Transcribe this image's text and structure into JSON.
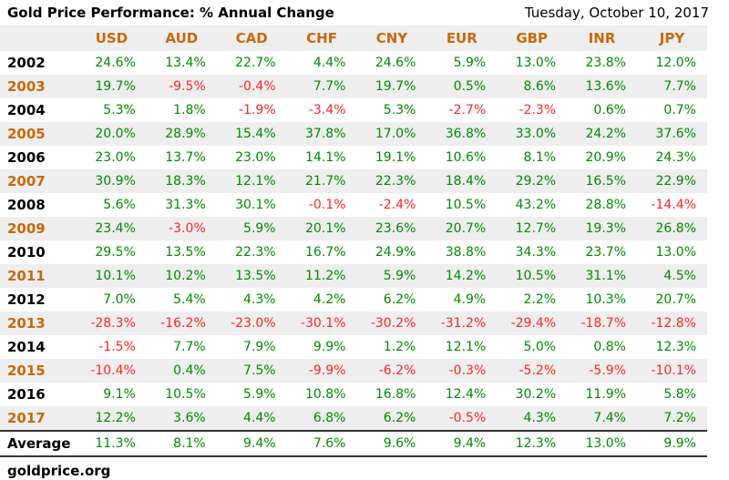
{
  "header": {
    "title": "Gold Price Performance: % Annual Change",
    "date": "Tuesday, October 10, 2017"
  },
  "footer": {
    "source": "goldprice.org"
  },
  "colors": {
    "accent_orange": "#c8690a",
    "positive_green": "#008a00",
    "negative_red": "#ff2525",
    "row_band_gray": "#eeeeee",
    "rule_dark": "#333333"
  },
  "chart_data": {
    "type": "table",
    "title": "Gold Price Performance: % Annual Change",
    "columns": [
      "USD",
      "AUD",
      "CAD",
      "CHF",
      "CNY",
      "EUR",
      "GBP",
      "INR",
      "JPY"
    ],
    "rows": [
      {
        "label": "2002",
        "values": [
          "24.6%",
          "13.4%",
          "22.7%",
          "4.4%",
          "24.6%",
          "5.9%",
          "13.0%",
          "23.8%",
          "12.0%"
        ]
      },
      {
        "label": "2003",
        "values": [
          "19.7%",
          "-9.5%",
          "-0.4%",
          "7.7%",
          "19.7%",
          "0.5%",
          "8.6%",
          "13.6%",
          "7.7%"
        ]
      },
      {
        "label": "2004",
        "values": [
          "5.3%",
          "1.8%",
          "-1.9%",
          "-3.4%",
          "5.3%",
          "-2.7%",
          "-2.3%",
          "0.6%",
          "0.7%"
        ]
      },
      {
        "label": "2005",
        "values": [
          "20.0%",
          "28.9%",
          "15.4%",
          "37.8%",
          "17.0%",
          "36.8%",
          "33.0%",
          "24.2%",
          "37.6%"
        ]
      },
      {
        "label": "2006",
        "values": [
          "23.0%",
          "13.7%",
          "23.0%",
          "14.1%",
          "19.1%",
          "10.6%",
          "8.1%",
          "20.9%",
          "24.3%"
        ]
      },
      {
        "label": "2007",
        "values": [
          "30.9%",
          "18.3%",
          "12.1%",
          "21.7%",
          "22.3%",
          "18.4%",
          "29.2%",
          "16.5%",
          "22.9%"
        ]
      },
      {
        "label": "2008",
        "values": [
          "5.6%",
          "31.3%",
          "30.1%",
          "-0.1%",
          "-2.4%",
          "10.5%",
          "43.2%",
          "28.8%",
          "-14.4%"
        ]
      },
      {
        "label": "2009",
        "values": [
          "23.4%",
          "-3.0%",
          "5.9%",
          "20.1%",
          "23.6%",
          "20.7%",
          "12.7%",
          "19.3%",
          "26.8%"
        ]
      },
      {
        "label": "2010",
        "values": [
          "29.5%",
          "13.5%",
          "22.3%",
          "16.7%",
          "24.9%",
          "38.8%",
          "34.3%",
          "23.7%",
          "13.0%"
        ]
      },
      {
        "label": "2011",
        "values": [
          "10.1%",
          "10.2%",
          "13.5%",
          "11.2%",
          "5.9%",
          "14.2%",
          "10.5%",
          "31.1%",
          "4.5%"
        ]
      },
      {
        "label": "2012",
        "values": [
          "7.0%",
          "5.4%",
          "4.3%",
          "4.2%",
          "6.2%",
          "4.9%",
          "2.2%",
          "10.3%",
          "20.7%"
        ]
      },
      {
        "label": "2013",
        "values": [
          "-28.3%",
          "-16.2%",
          "-23.0%",
          "-30.1%",
          "-30.2%",
          "-31.2%",
          "-29.4%",
          "-18.7%",
          "-12.8%"
        ]
      },
      {
        "label": "2014",
        "values": [
          "-1.5%",
          "7.7%",
          "7.9%",
          "9.9%",
          "1.2%",
          "12.1%",
          "5.0%",
          "0.8%",
          "12.3%"
        ]
      },
      {
        "label": "2015",
        "values": [
          "-10.4%",
          "0.4%",
          "7.5%",
          "-9.9%",
          "-6.2%",
          "-0.3%",
          "-5.2%",
          "-5.9%",
          "-10.1%"
        ]
      },
      {
        "label": "2016",
        "values": [
          "9.1%",
          "10.5%",
          "5.9%",
          "10.8%",
          "16.8%",
          "12.4%",
          "30.2%",
          "11.9%",
          "5.8%"
        ]
      },
      {
        "label": "2017",
        "values": [
          "12.2%",
          "3.6%",
          "4.4%",
          "6.8%",
          "6.2%",
          "-0.5%",
          "4.3%",
          "7.4%",
          "7.2%"
        ]
      }
    ],
    "average": {
      "label": "Average",
      "values": [
        "11.3%",
        "8.1%",
        "9.4%",
        "7.6%",
        "9.6%",
        "9.4%",
        "12.3%",
        "13.0%",
        "9.9%"
      ]
    }
  }
}
